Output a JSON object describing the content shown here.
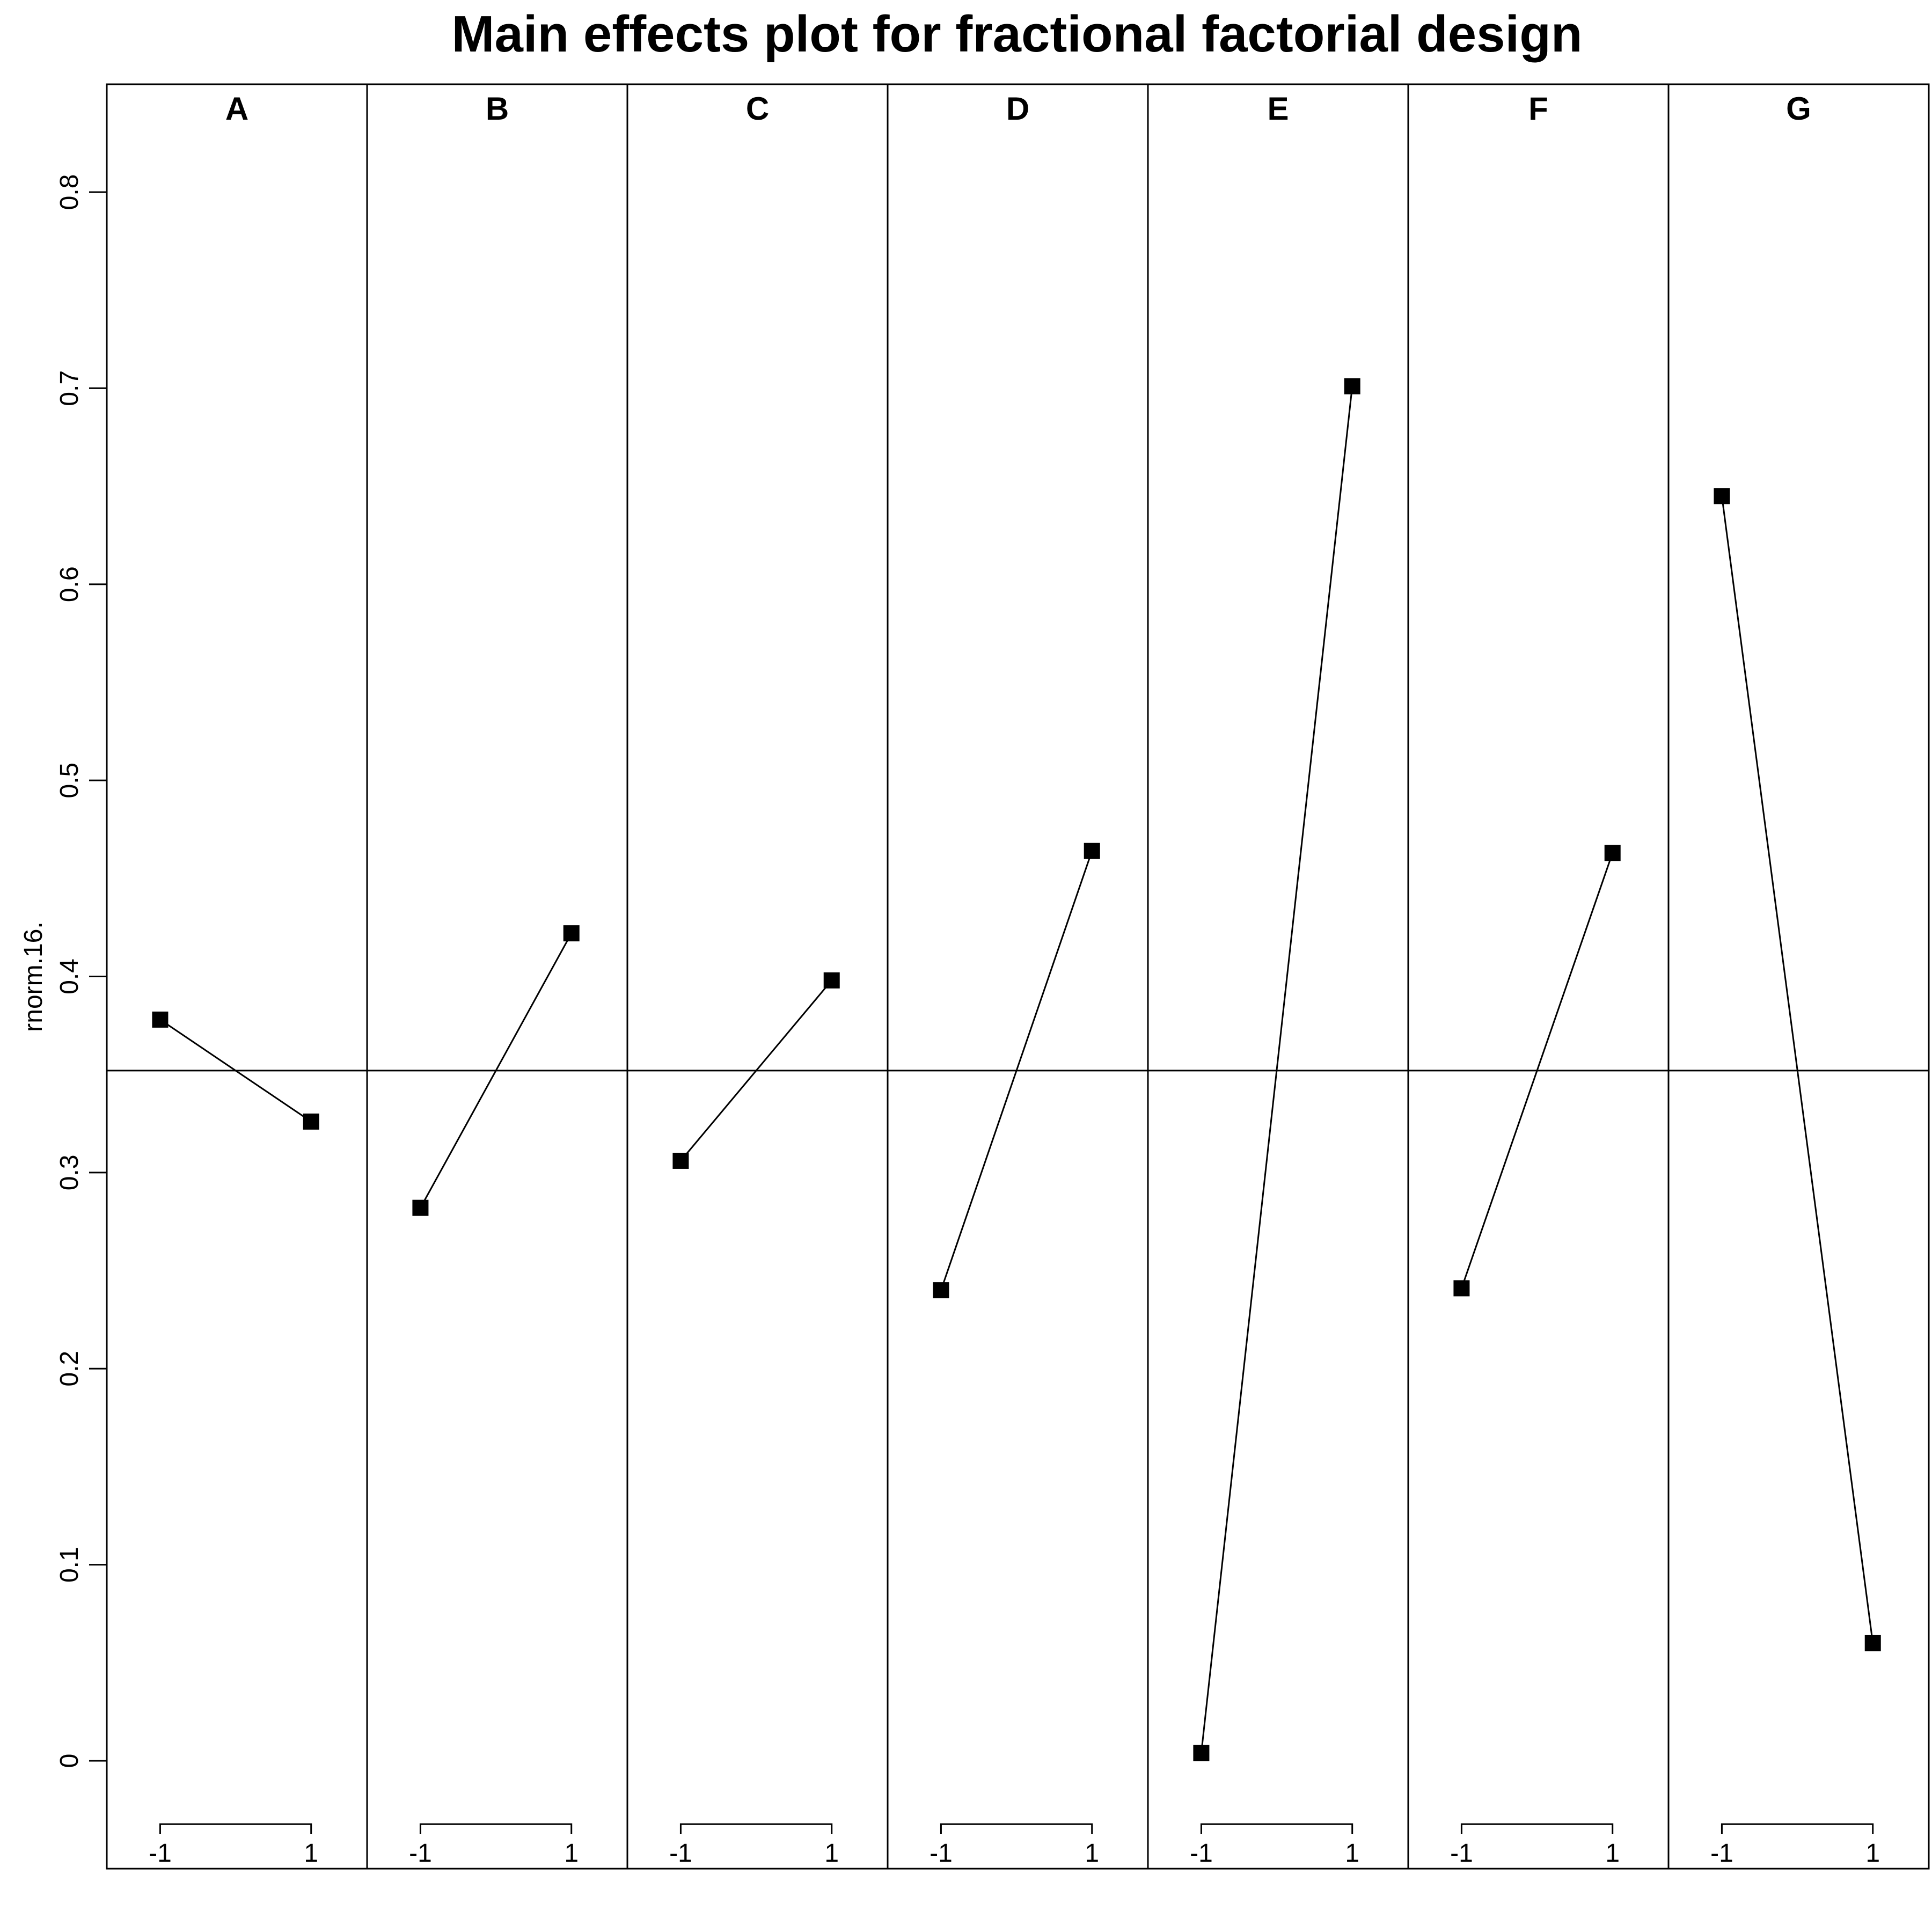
{
  "chart_data": {
    "type": "line",
    "title": "Main effects plot for fractional factorial design",
    "ylabel": "rnorm.16.",
    "ylim": [
      -0.055,
      0.855
    ],
    "yticks": [
      "0",
      "0.1",
      "0.2",
      "0.3",
      "0.4",
      "0.5",
      "0.6",
      "0.7",
      "0.8"
    ],
    "x_levels": [
      "-1",
      "1"
    ],
    "grand_mean": 0.352,
    "colors": {
      "line": "#000000",
      "marker": "#000000",
      "background": "#ffffff"
    },
    "marker": "filled-square",
    "panels": [
      {
        "factor": "A",
        "values": [
          0.378,
          0.326
        ]
      },
      {
        "factor": "B",
        "values": [
          0.282,
          0.422
        ]
      },
      {
        "factor": "C",
        "values": [
          0.306,
          0.398
        ]
      },
      {
        "factor": "D",
        "values": [
          0.24,
          0.464
        ]
      },
      {
        "factor": "E",
        "values": [
          0.004,
          0.701
        ]
      },
      {
        "factor": "F",
        "values": [
          0.241,
          0.463
        ]
      },
      {
        "factor": "G",
        "values": [
          0.645,
          0.06
        ]
      }
    ]
  }
}
